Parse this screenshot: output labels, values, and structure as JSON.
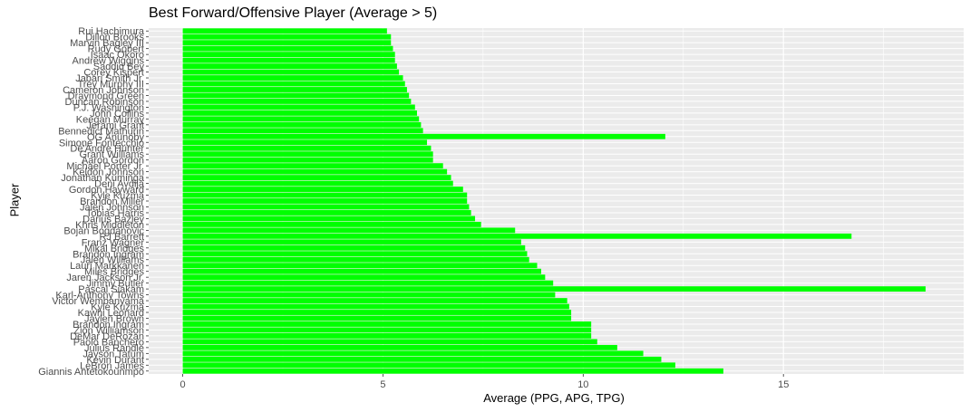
{
  "chart_data": {
    "type": "bar",
    "orientation": "horizontal",
    "title": "Best Forward/Offensive Player (Average > 5)",
    "xlabel": "Average (PPG, APG, TPG)",
    "ylabel": "Player",
    "xlim": [
      -0.85,
      19.5
    ],
    "x_ticks": [
      0,
      5,
      10,
      15
    ],
    "grid": true,
    "legend": "none",
    "bar_color": "#00ff00",
    "panel_color": "#ebebeb",
    "grid_color": "#ffffff",
    "categories": [
      "Rui Hachimura",
      "Dillon Brooks",
      "Marvin Bagley III",
      "Rudy Gobert",
      "Isaac Okoro",
      "Andrew Wiggins",
      "Saddiq Bey",
      "Corey Kispert",
      "Jabari Smith Jr.",
      "Trey Murphy III",
      "Cameron Johnson",
      "Draymond Green",
      "Duncan Robinson",
      "P.J. Washington",
      "John Collins",
      "Keegan Murray",
      "Jerami Grant",
      "Bennedict Mathurin",
      "OG Anunoby",
      "Simone Fontecchio",
      "De'Andre Hunter",
      "Grant Williams",
      "Aaron Gordon",
      "Michael Porter Jr.",
      "Keldon Johnson",
      "Jonathan Kuminga",
      "Deni Avdija",
      "Gordon Hayward",
      "Kyle Kuzma",
      "Brandon Miller",
      "Jalen Johnson",
      "Tobias Harris",
      "Darius Bazley",
      "Khris Middleton",
      "Bojan Bogdanovic",
      "RJ Barrett",
      "Franz Wagner",
      "Mikal Bridges",
      "Brandon Ingram",
      "Jalen Williams",
      "Lauri Markkanen",
      "Miles Bridges",
      "Jaren Jackson Jr.",
      "Jimmy Butler",
      "Pascal Siakam",
      "Karl-Anthony Towns",
      "Victor Wembanyama",
      "Kyle Kuzma",
      "Kawhi Leonard",
      "Jaylen Brown",
      "Brandon Ingram",
      "Zion Williamson",
      "DeMar DeRozan",
      "Paolo Banchero",
      "Julius Randle",
      "Jayson Tatum",
      "Kevin Durant",
      "LeBron James",
      "Giannis Antetokounmpo"
    ],
    "values": [
      5.1,
      5.2,
      5.2,
      5.25,
      5.3,
      5.3,
      5.35,
      5.4,
      5.5,
      5.55,
      5.6,
      5.65,
      5.7,
      5.8,
      5.85,
      5.9,
      5.95,
      6.0,
      12.05,
      6.1,
      6.2,
      6.25,
      6.25,
      6.5,
      6.6,
      6.7,
      6.75,
      7.0,
      7.1,
      7.1,
      7.15,
      7.2,
      7.3,
      7.45,
      8.3,
      16.7,
      8.45,
      8.55,
      8.6,
      8.65,
      8.85,
      8.95,
      9.05,
      9.25,
      18.55,
      9.3,
      9.6,
      9.65,
      9.7,
      9.7,
      10.2,
      10.2,
      10.2,
      10.35,
      10.85,
      11.5,
      11.95,
      12.3,
      13.5
    ]
  }
}
